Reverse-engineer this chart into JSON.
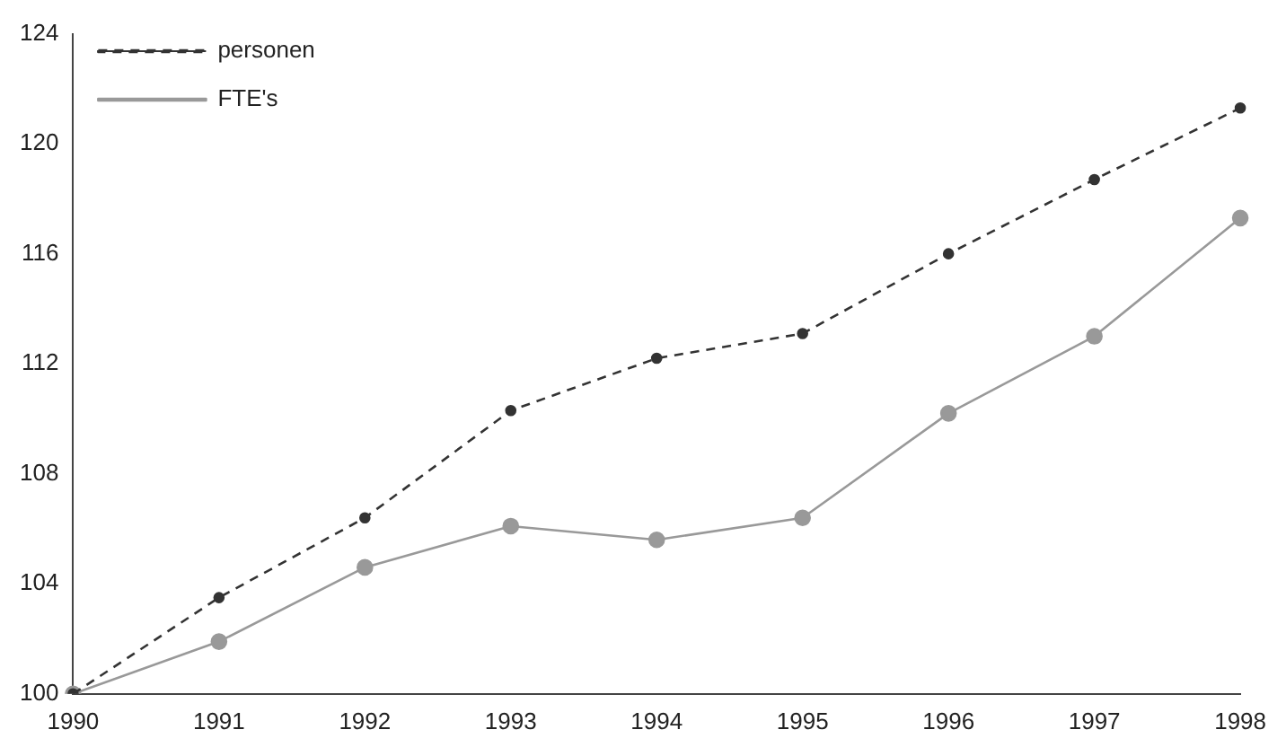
{
  "chart_data": {
    "type": "line",
    "categories": [
      "1990",
      "1991",
      "1992",
      "1993",
      "1994",
      "1995",
      "1996",
      "1997",
      "1998"
    ],
    "series": [
      {
        "name": "personen",
        "color": "#333333",
        "line_style": "dashed",
        "values": [
          100,
          103.5,
          106.4,
          110.3,
          112.2,
          113.1,
          116,
          118.7,
          121.3
        ]
      },
      {
        "name": "FTE's",
        "color": "#999999",
        "line_style": "solid",
        "values": [
          100,
          101.9,
          104.6,
          106.1,
          105.6,
          106.4,
          110.2,
          113,
          117.3
        ]
      }
    ],
    "ylim": [
      100,
      124
    ],
    "yticks": [
      100,
      104,
      108,
      112,
      116,
      120,
      124
    ],
    "grid": false,
    "legend": "top left",
    "marker": "circle"
  }
}
